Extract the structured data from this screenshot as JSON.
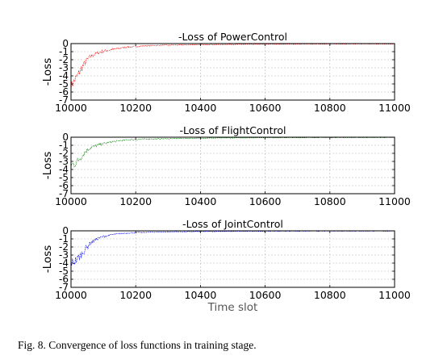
{
  "chart_data": [
    {
      "type": "line",
      "title": "-Loss of PowerControl",
      "ylabel": "-Loss",
      "xlabel": "",
      "xlim": [
        10000,
        11000
      ],
      "ylim": [
        -7,
        0
      ],
      "xticks": [
        "10000",
        "10200",
        "10400",
        "10600",
        "10800",
        "11000"
      ],
      "yticks": [
        "0",
        "-1",
        "-2",
        "-3",
        "-4",
        "-5",
        "-6",
        "-7"
      ],
      "grid": true,
      "color": "#ff0000",
      "series": [
        {
          "x": [
            10000,
            10010,
            10020,
            10030,
            10040,
            10050,
            10060,
            10080,
            10100,
            10130,
            10160,
            10200,
            10250,
            10300,
            10400,
            10500,
            10600,
            10700,
            10800,
            10900,
            11000
          ],
          "y": [
            -5.3,
            -4.6,
            -4.0,
            -3.2,
            -2.6,
            -2.0,
            -1.6,
            -1.2,
            -0.95,
            -0.7,
            -0.5,
            -0.35,
            -0.25,
            -0.2,
            -0.13,
            -0.1,
            -0.08,
            -0.06,
            -0.05,
            -0.05,
            -0.05
          ]
        }
      ]
    },
    {
      "type": "line",
      "title": "-Loss of FlightControl",
      "ylabel": "-Loss",
      "xlabel": "",
      "xlim": [
        10000,
        11000
      ],
      "ylim": [
        -7,
        0
      ],
      "xticks": [
        "10000",
        "10200",
        "10400",
        "10600",
        "10800",
        "11000"
      ],
      "yticks": [
        "0",
        "-1",
        "-2",
        "-3",
        "-4",
        "-5",
        "-6",
        "-7"
      ],
      "grid": true,
      "color": "#008000",
      "series": [
        {
          "x": [
            10000,
            10010,
            10020,
            10030,
            10040,
            10050,
            10060,
            10080,
            10100,
            10130,
            10160,
            10200,
            10250,
            10300,
            10400,
            10500,
            10600,
            10700,
            10800,
            10900,
            11000
          ],
          "y": [
            -3.5,
            -3.3,
            -3.0,
            -2.5,
            -2.0,
            -1.6,
            -1.3,
            -1.0,
            -0.8,
            -0.55,
            -0.38,
            -0.28,
            -0.22,
            -0.18,
            -0.12,
            -0.08,
            -0.06,
            -0.05,
            -0.04,
            -0.04,
            -0.04
          ]
        }
      ]
    },
    {
      "type": "line",
      "title": "-Loss of JointControl",
      "ylabel": "-Loss",
      "xlabel": "Time slot",
      "xlim": [
        10000,
        11000
      ],
      "ylim": [
        -7,
        0
      ],
      "xticks": [
        "10000",
        "10200",
        "10400",
        "10600",
        "10800",
        "11000"
      ],
      "yticks": [
        "0",
        "-1",
        "-2",
        "-3",
        "-4",
        "-5",
        "-6",
        "-7"
      ],
      "grid": true,
      "color": "#0000ff",
      "series": [
        {
          "x": [
            10000,
            10010,
            10020,
            10030,
            10040,
            10050,
            10060,
            10080,
            10100,
            10130,
            10160,
            10200,
            10250,
            10300,
            10400,
            10500,
            10600,
            10700,
            10800,
            10900,
            11000
          ],
          "y": [
            -4.0,
            -3.8,
            -3.5,
            -3.0,
            -2.5,
            -2.0,
            -1.5,
            -1.0,
            -0.7,
            -0.45,
            -0.3,
            -0.22,
            -0.17,
            -0.13,
            -0.09,
            -0.07,
            -0.05,
            -0.04,
            -0.03,
            -0.03,
            -0.03
          ]
        }
      ]
    }
  ],
  "caption": "Fig. 8.  Convergence of loss functions in training stage."
}
